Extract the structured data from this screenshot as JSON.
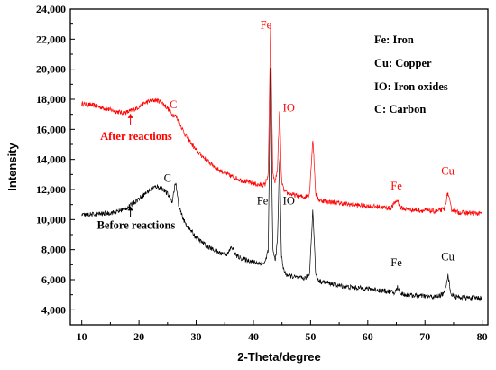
{
  "chart_data": {
    "type": "line",
    "xlabel": "2-Theta/degree",
    "ylabel": "Intensity",
    "xlim": [
      8,
      81
    ],
    "ylim": [
      3000,
      24000
    ],
    "xticks": [
      10,
      20,
      30,
      40,
      50,
      60,
      70,
      80
    ],
    "yticks": [
      4000,
      6000,
      8000,
      10000,
      12000,
      14000,
      16000,
      18000,
      20000,
      22000,
      24000
    ],
    "xtick_labels": [
      "10",
      "20",
      "30",
      "40",
      "50",
      "60",
      "70",
      "80"
    ],
    "ytick_labels": [
      "4,000",
      "6,000",
      "8,000",
      "10,000",
      "12,000",
      "14,000",
      "16,000",
      "18,000",
      "20,000",
      "22,000",
      "24,000"
    ],
    "legend": [
      "Fe: Iron",
      "Cu: Copper",
      "IO: Iron oxides",
      "C: Carbon"
    ],
    "series": [
      {
        "name": "After reactions",
        "color": "#ff0000",
        "x": [
          10,
          12,
          14,
          16,
          17,
          18,
          19,
          20,
          21,
          22,
          23,
          24,
          25,
          25.8,
          26.4,
          27,
          28,
          30,
          32,
          34,
          36,
          38,
          40,
          41,
          42,
          42.6,
          43.0,
          43.4,
          43.8,
          44.2,
          44.6,
          44.9,
          45.2,
          45.6,
          46,
          47,
          48,
          49,
          49.8,
          50.4,
          50.9,
          51.5,
          53,
          55,
          57,
          60,
          62,
          64,
          64.7,
          65.2,
          65.7,
          66.5,
          68,
          70,
          72,
          73.4,
          74.0,
          74.6,
          75.5,
          77,
          80
        ],
        "y": [
          17700,
          17600,
          17400,
          17200,
          17100,
          17150,
          17300,
          17500,
          17750,
          17900,
          17950,
          17800,
          17400,
          17000,
          16900,
          16500,
          15700,
          14600,
          13900,
          13300,
          12900,
          12600,
          12400,
          12300,
          12300,
          13000,
          22900,
          13000,
          12500,
          13300,
          17500,
          12700,
          12100,
          11800,
          11750,
          11650,
          11550,
          11500,
          11700,
          15400,
          11700,
          11300,
          11200,
          11100,
          11000,
          10900,
          10850,
          10750,
          11100,
          11300,
          10800,
          10700,
          10650,
          10600,
          10550,
          10700,
          11800,
          10700,
          10500,
          10450,
          10400
        ]
      },
      {
        "name": "Before reactions",
        "color": "#000000",
        "x": [
          10,
          12,
          14,
          16,
          18,
          19,
          20,
          21,
          22,
          23,
          24,
          25,
          25.8,
          26.4,
          27,
          28,
          30,
          32,
          34,
          35.5,
          36.2,
          37,
          38,
          40,
          41,
          42,
          42.6,
          43.0,
          43.4,
          43.8,
          44.2,
          44.6,
          44.9,
          45.2,
          45.6,
          46,
          47,
          48,
          49,
          49.8,
          50.4,
          50.9,
          51.5,
          53,
          55,
          57,
          60,
          62,
          64,
          64.7,
          65.2,
          65.7,
          66.5,
          68,
          70,
          72,
          73.4,
          74.0,
          74.6,
          75.5,
          77,
          80
        ],
        "y": [
          10300,
          10350,
          10400,
          10500,
          10800,
          11100,
          11400,
          11700,
          12000,
          12200,
          12100,
          11700,
          11200,
          12500,
          10800,
          9800,
          8800,
          8200,
          7800,
          7700,
          8200,
          7600,
          7400,
          7200,
          7100,
          7100,
          8000,
          20000,
          8000,
          7300,
          8500,
          14400,
          7600,
          6800,
          6400,
          6300,
          6200,
          6100,
          6100,
          6300,
          10700,
          6300,
          5900,
          5800,
          5600,
          5500,
          5400,
          5300,
          5200,
          5100,
          5500,
          5100,
          5000,
          4950,
          4900,
          4850,
          5100,
          6300,
          5000,
          4850,
          4800,
          4800
        ]
      }
    ],
    "annotations": [
      {
        "text": "Fe",
        "x": 42.2,
        "y": 22700,
        "color": "#ff0000"
      },
      {
        "text": "IO",
        "x": 46.2,
        "y": 17200,
        "color": "#ff0000"
      },
      {
        "text": "C",
        "x": 26.0,
        "y": 17400,
        "color": "#ff0000"
      },
      {
        "text": "After reactions",
        "x": 19.5,
        "y": 15300,
        "color": "#ff0000"
      },
      {
        "text": "Fe",
        "x": 65.0,
        "y": 12000,
        "color": "#ff0000"
      },
      {
        "text": "Cu",
        "x": 74.0,
        "y": 13000,
        "color": "#ff0000"
      },
      {
        "text": "C",
        "x": 25.0,
        "y": 12500,
        "color": "#000000"
      },
      {
        "text": "Fe",
        "x": 41.6,
        "y": 11000,
        "color": "#000000"
      },
      {
        "text": "IO",
        "x": 46.2,
        "y": 11000,
        "color": "#000000"
      },
      {
        "text": "Before reactions",
        "x": 19.5,
        "y": 9400,
        "color": "#000000"
      },
      {
        "text": "Fe",
        "x": 65.0,
        "y": 6900,
        "color": "#000000"
      },
      {
        "text": "Cu",
        "x": 74.0,
        "y": 7300,
        "color": "#000000"
      }
    ],
    "arrows": [
      {
        "x": 18.5,
        "from": 16300,
        "to": 17050,
        "color": "#ff0000"
      },
      {
        "x": 18.5,
        "from": 10150,
        "to": 10900,
        "color": "#000000"
      }
    ],
    "legend_placement": "top-right",
    "grid": false
  }
}
